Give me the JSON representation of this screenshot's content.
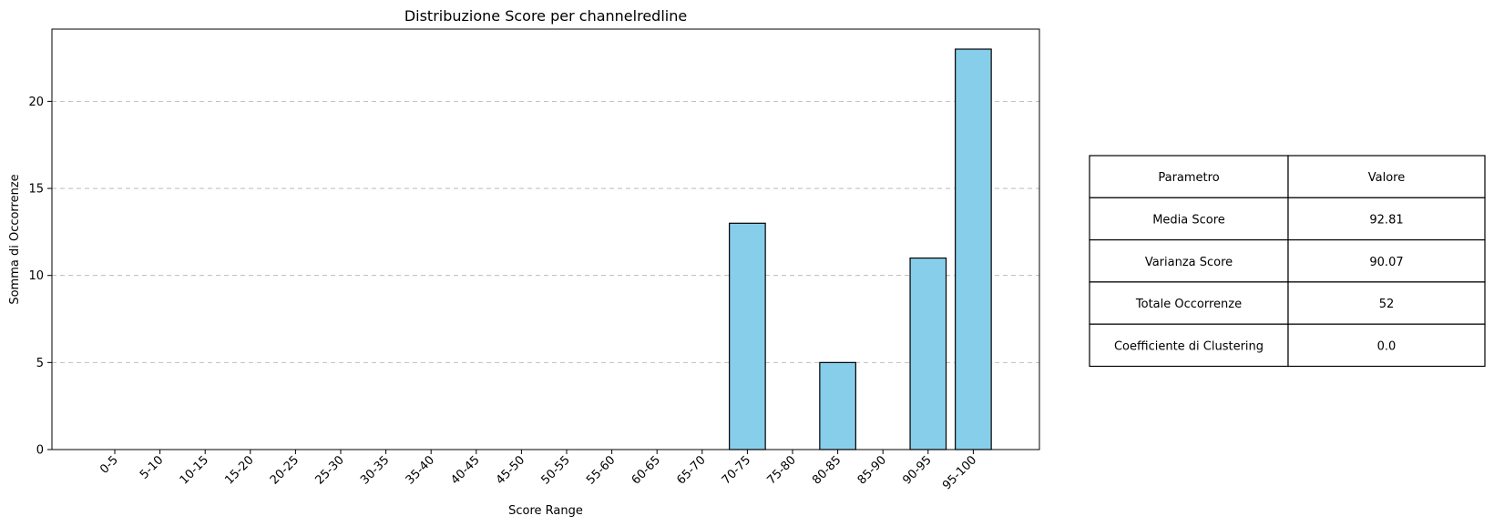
{
  "chart_data": {
    "type": "bar",
    "title": "Distribuzione Score per channelredline",
    "xlabel": "Score Range",
    "ylabel": "Somma di Occorrenze",
    "categories": [
      "0-5",
      "5-10",
      "10-15",
      "15-20",
      "20-25",
      "25-30",
      "30-35",
      "35-40",
      "40-45",
      "45-50",
      "50-55",
      "55-60",
      "60-65",
      "65-70",
      "70-75",
      "75-80",
      "80-85",
      "85-90",
      "90-95",
      "95-100"
    ],
    "values": [
      0,
      0,
      0,
      0,
      0,
      0,
      0,
      0,
      0,
      0,
      0,
      0,
      0,
      0,
      13,
      0,
      5,
      0,
      11,
      23
    ],
    "ylim": [
      0,
      24.15
    ],
    "yticks": [
      0,
      5,
      10,
      15,
      20
    ],
    "grid": "horizontal dashed",
    "bar_color": "#87CEEB",
    "edge_color": "#000000"
  },
  "table": {
    "headers": [
      "Parametro",
      "Valore"
    ],
    "rows": [
      [
        "Media Score",
        "92.81"
      ],
      [
        "Varianza Score",
        "90.07"
      ],
      [
        "Totale Occorrenze",
        "52"
      ],
      [
        "Coefficiente di Clustering",
        "0.0"
      ]
    ]
  }
}
